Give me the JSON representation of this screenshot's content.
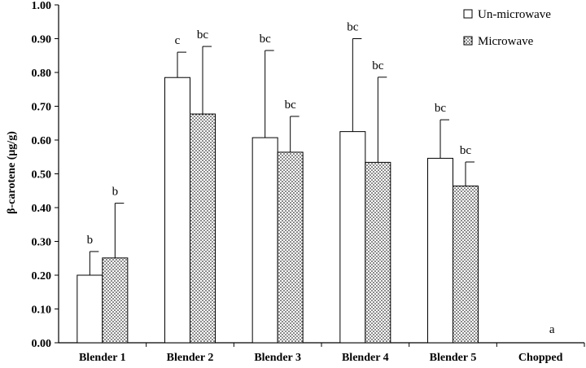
{
  "chart_data": {
    "type": "bar",
    "ylabel": "β-carotene  (μg/g)",
    "xlabel": "",
    "ylim": [
      0,
      1.0
    ],
    "yticks": [
      "0.00",
      "0.10",
      "0.20",
      "0.30",
      "0.40",
      "0.50",
      "0.60",
      "0.70",
      "0.80",
      "0.90",
      "1.00"
    ],
    "categories": [
      "Blender 1",
      "Blender 2",
      "Blender 3",
      "Blender 4",
      "Blender 5",
      "Chopped"
    ],
    "series": [
      {
        "name": "Un-microwave",
        "pattern": "plain",
        "values": [
          0.2,
          0.785,
          0.607,
          0.625,
          0.546,
          null
        ],
        "errors": [
          0.07,
          0.075,
          0.258,
          0.275,
          0.114,
          null
        ],
        "labels": [
          "b",
          "c",
          "bc",
          "bc",
          "bc",
          ""
        ]
      },
      {
        "name": "Microwave",
        "pattern": "dotted",
        "values": [
          0.251,
          0.677,
          0.564,
          0.534,
          0.464,
          null
        ],
        "errors": [
          0.162,
          0.2,
          0.106,
          0.252,
          0.071,
          null
        ],
        "labels": [
          "b",
          "bc",
          "bc",
          "bc",
          "bc",
          ""
        ]
      }
    ],
    "category_labels": [
      "",
      "",
      "",
      "",
      "",
      "a"
    ],
    "legend_position": "top-right",
    "grid": false
  }
}
